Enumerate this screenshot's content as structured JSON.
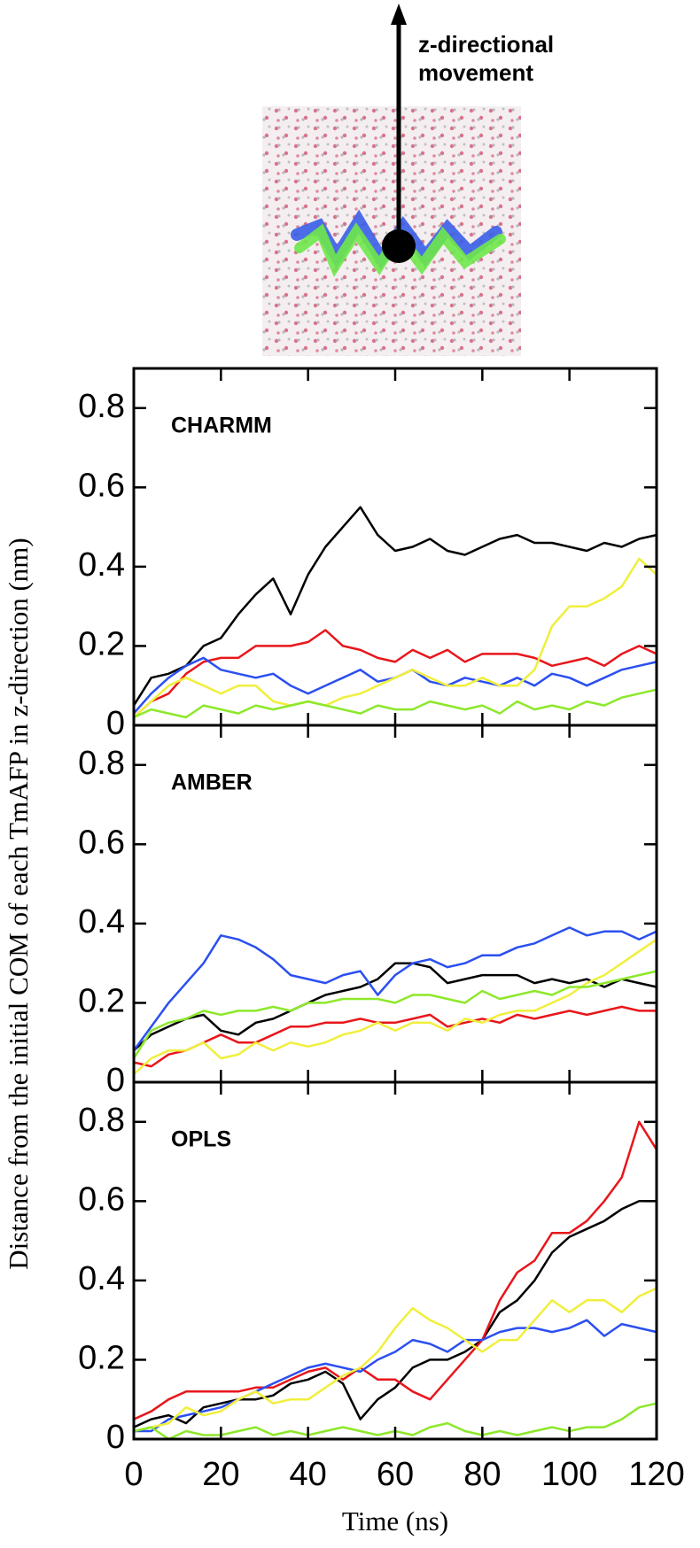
{
  "annotation": "z-directional movement",
  "chart_data": [
    {
      "type": "line",
      "title": "CHARMM",
      "x": [
        0,
        4,
        8,
        12,
        16,
        20,
        24,
        28,
        32,
        36,
        40,
        44,
        48,
        52,
        56,
        60,
        64,
        68,
        72,
        76,
        80,
        84,
        88,
        92,
        96,
        100,
        104,
        108,
        112,
        116,
        120
      ],
      "xlim": [
        0,
        120
      ],
      "xticks": [
        0,
        20,
        40,
        60,
        80,
        100,
        120
      ],
      "ylim": [
        0,
        0.9
      ],
      "yticks": [
        0,
        0.2,
        0.4,
        0.6,
        0.8
      ],
      "series": [
        {
          "color": "#000000",
          "values": [
            0.05,
            0.12,
            0.13,
            0.15,
            0.2,
            0.22,
            0.28,
            0.33,
            0.37,
            0.28,
            0.38,
            0.45,
            0.5,
            0.55,
            0.48,
            0.44,
            0.45,
            0.47,
            0.44,
            0.43,
            0.45,
            0.47,
            0.48,
            0.46,
            0.46,
            0.45,
            0.44,
            0.46,
            0.45,
            0.47,
            0.48
          ]
        },
        {
          "color": "#e8161b",
          "values": [
            0.02,
            0.06,
            0.08,
            0.13,
            0.16,
            0.17,
            0.17,
            0.2,
            0.2,
            0.2,
            0.21,
            0.24,
            0.2,
            0.19,
            0.17,
            0.16,
            0.19,
            0.17,
            0.19,
            0.16,
            0.18,
            0.18,
            0.18,
            0.17,
            0.15,
            0.16,
            0.17,
            0.15,
            0.18,
            0.2,
            0.18
          ]
        },
        {
          "color": "#2b4ff0",
          "values": [
            0.03,
            0.08,
            0.12,
            0.15,
            0.17,
            0.14,
            0.13,
            0.12,
            0.13,
            0.1,
            0.08,
            0.1,
            0.12,
            0.14,
            0.11,
            0.12,
            0.14,
            0.11,
            0.1,
            0.12,
            0.11,
            0.1,
            0.12,
            0.1,
            0.13,
            0.12,
            0.1,
            0.12,
            0.14,
            0.15,
            0.16
          ]
        },
        {
          "color": "#f0ef3c",
          "values": [
            0.02,
            0.06,
            0.1,
            0.12,
            0.1,
            0.08,
            0.1,
            0.1,
            0.06,
            0.05,
            0.06,
            0.05,
            0.07,
            0.08,
            0.1,
            0.12,
            0.14,
            0.12,
            0.1,
            0.1,
            0.12,
            0.1,
            0.1,
            0.14,
            0.25,
            0.3,
            0.3,
            0.32,
            0.35,
            0.42,
            0.38
          ]
        },
        {
          "color": "#8de82a",
          "values": [
            0.02,
            0.04,
            0.03,
            0.02,
            0.05,
            0.04,
            0.03,
            0.05,
            0.04,
            0.05,
            0.06,
            0.05,
            0.04,
            0.03,
            0.05,
            0.04,
            0.04,
            0.06,
            0.05,
            0.04,
            0.05,
            0.03,
            0.06,
            0.04,
            0.05,
            0.04,
            0.06,
            0.05,
            0.07,
            0.08,
            0.09
          ]
        }
      ]
    },
    {
      "type": "line",
      "title": "AMBER",
      "ylabel": "Distance from the initial COM of each TmAFP in z-direction (nm)",
      "x": [
        0,
        4,
        8,
        12,
        16,
        20,
        24,
        28,
        32,
        36,
        40,
        44,
        48,
        52,
        56,
        60,
        64,
        68,
        72,
        76,
        80,
        84,
        88,
        92,
        96,
        100,
        104,
        108,
        112,
        116,
        120
      ],
      "xlim": [
        0,
        120
      ],
      "xticks": [
        0,
        20,
        40,
        60,
        80,
        100,
        120
      ],
      "ylim": [
        0,
        0.9
      ],
      "yticks": [
        0,
        0.2,
        0.4,
        0.6,
        0.8
      ],
      "series": [
        {
          "color": "#000000",
          "values": [
            0.08,
            0.12,
            0.14,
            0.16,
            0.17,
            0.13,
            0.12,
            0.15,
            0.16,
            0.18,
            0.2,
            0.22,
            0.23,
            0.24,
            0.26,
            0.3,
            0.3,
            0.29,
            0.25,
            0.26,
            0.27,
            0.27,
            0.27,
            0.25,
            0.26,
            0.25,
            0.26,
            0.24,
            0.26,
            0.25,
            0.24
          ]
        },
        {
          "color": "#e8161b",
          "values": [
            0.05,
            0.04,
            0.07,
            0.08,
            0.1,
            0.12,
            0.1,
            0.1,
            0.12,
            0.14,
            0.14,
            0.15,
            0.15,
            0.16,
            0.15,
            0.15,
            0.16,
            0.17,
            0.14,
            0.15,
            0.16,
            0.15,
            0.17,
            0.16,
            0.17,
            0.18,
            0.17,
            0.18,
            0.19,
            0.18,
            0.18
          ]
        },
        {
          "color": "#2b4ff0",
          "values": [
            0.08,
            0.14,
            0.2,
            0.25,
            0.3,
            0.37,
            0.36,
            0.34,
            0.31,
            0.27,
            0.26,
            0.25,
            0.27,
            0.28,
            0.22,
            0.27,
            0.3,
            0.31,
            0.29,
            0.3,
            0.32,
            0.32,
            0.34,
            0.35,
            0.37,
            0.39,
            0.37,
            0.38,
            0.38,
            0.36,
            0.38
          ]
        },
        {
          "color": "#f0ef3c",
          "values": [
            0.02,
            0.06,
            0.08,
            0.08,
            0.1,
            0.06,
            0.07,
            0.1,
            0.08,
            0.1,
            0.09,
            0.1,
            0.12,
            0.13,
            0.15,
            0.13,
            0.15,
            0.15,
            0.13,
            0.16,
            0.15,
            0.17,
            0.18,
            0.18,
            0.2,
            0.22,
            0.25,
            0.27,
            0.3,
            0.33,
            0.36
          ]
        },
        {
          "color": "#8de82a",
          "values": [
            0.06,
            0.13,
            0.15,
            0.16,
            0.18,
            0.17,
            0.18,
            0.18,
            0.19,
            0.18,
            0.2,
            0.2,
            0.21,
            0.21,
            0.21,
            0.2,
            0.22,
            0.22,
            0.21,
            0.2,
            0.23,
            0.21,
            0.22,
            0.23,
            0.22,
            0.24,
            0.24,
            0.25,
            0.26,
            0.27,
            0.28
          ]
        }
      ]
    },
    {
      "type": "line",
      "title": "OPLS",
      "xlabel": "Time (ns)",
      "x": [
        0,
        4,
        8,
        12,
        16,
        20,
        24,
        28,
        32,
        36,
        40,
        44,
        48,
        52,
        56,
        60,
        64,
        68,
        72,
        76,
        80,
        84,
        88,
        92,
        96,
        100,
        104,
        108,
        112,
        116,
        120
      ],
      "xlim": [
        0,
        120
      ],
      "xticks": [
        0,
        20,
        40,
        60,
        80,
        100,
        120
      ],
      "ylim": [
        0,
        0.9
      ],
      "yticks": [
        0,
        0.2,
        0.4,
        0.6,
        0.8
      ],
      "series": [
        {
          "color": "#000000",
          "values": [
            0.03,
            0.05,
            0.06,
            0.04,
            0.08,
            0.09,
            0.1,
            0.1,
            0.11,
            0.14,
            0.15,
            0.17,
            0.14,
            0.05,
            0.1,
            0.13,
            0.18,
            0.2,
            0.2,
            0.22,
            0.25,
            0.32,
            0.35,
            0.4,
            0.47,
            0.51,
            0.53,
            0.55,
            0.58,
            0.6,
            0.6
          ]
        },
        {
          "color": "#e8161b",
          "values": [
            0.05,
            0.07,
            0.1,
            0.12,
            0.12,
            0.12,
            0.12,
            0.13,
            0.13,
            0.15,
            0.17,
            0.18,
            0.15,
            0.18,
            0.15,
            0.15,
            0.12,
            0.1,
            0.15,
            0.2,
            0.25,
            0.35,
            0.42,
            0.45,
            0.52,
            0.52,
            0.55,
            0.6,
            0.66,
            0.8,
            0.73
          ]
        },
        {
          "color": "#2b4ff0",
          "values": [
            0.02,
            0.02,
            0.05,
            0.06,
            0.07,
            0.08,
            0.1,
            0.12,
            0.14,
            0.16,
            0.18,
            0.19,
            0.18,
            0.17,
            0.2,
            0.22,
            0.25,
            0.24,
            0.22,
            0.25,
            0.25,
            0.27,
            0.28,
            0.28,
            0.27,
            0.28,
            0.3,
            0.26,
            0.29,
            0.28,
            0.27
          ]
        },
        {
          "color": "#f0ef3c",
          "values": [
            0.02,
            0.03,
            0.04,
            0.08,
            0.06,
            0.07,
            0.1,
            0.12,
            0.09,
            0.1,
            0.1,
            0.13,
            0.16,
            0.18,
            0.22,
            0.28,
            0.33,
            0.3,
            0.28,
            0.25,
            0.22,
            0.25,
            0.25,
            0.3,
            0.35,
            0.32,
            0.35,
            0.35,
            0.32,
            0.36,
            0.38
          ]
        },
        {
          "color": "#8de82a",
          "values": [
            0.02,
            0.03,
            0.0,
            0.02,
            0.01,
            0.01,
            0.02,
            0.03,
            0.01,
            0.02,
            0.01,
            0.02,
            0.03,
            0.02,
            0.01,
            0.02,
            0.01,
            0.03,
            0.04,
            0.02,
            0.01,
            0.02,
            0.01,
            0.02,
            0.03,
            0.02,
            0.03,
            0.03,
            0.05,
            0.08,
            0.09
          ]
        }
      ]
    }
  ]
}
